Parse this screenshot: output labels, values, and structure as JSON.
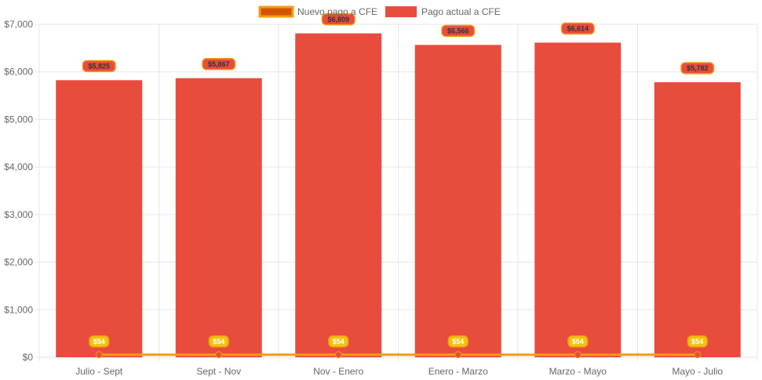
{
  "colors": {
    "bar_fill": "#e84c3d",
    "line_stroke": "#f39c12",
    "legend_line_fill": "#d35400",
    "label_line_bg": "#f1c40f",
    "label_line_border": "#f39c12",
    "label_line_text": "#ffffff",
    "label_bar_bg": "#e84c3d",
    "label_bar_border": "#f39c12",
    "label_bar_text": "#333333",
    "grid": "#e5e5e5",
    "axis_text": "#666666"
  },
  "chart_data": {
    "type": "bar",
    "categories": [
      "Julio - Sept",
      "Sept - Nov",
      "Nov - Enero",
      "Enero - Marzo",
      "Marzo - Mayo",
      "Mayo - Julio"
    ],
    "series": [
      {
        "name": "Nuevo pago a CFE",
        "type": "line",
        "values": [
          54,
          54,
          54,
          54,
          54,
          54
        ],
        "labels": [
          "$54",
          "$54",
          "$54",
          "$54",
          "$54",
          "$54"
        ]
      },
      {
        "name": "Pago actual a CFE",
        "type": "bar",
        "values": [
          5825,
          5867,
          6809,
          6566,
          6614,
          5782
        ],
        "labels": [
          "$5,825",
          "$5,867",
          "$6,809",
          "$6,566",
          "$6,614",
          "$5,782"
        ]
      }
    ],
    "ylim": [
      0,
      7000
    ],
    "yticks": [
      0,
      1000,
      2000,
      3000,
      4000,
      5000,
      6000,
      7000
    ],
    "ytick_labels": [
      "$0",
      "$1,000",
      "$2,000",
      "$3,000",
      "$4,000",
      "$5,000",
      "$6,000",
      "$7,000"
    ],
    "grid": true,
    "legend_position": "top"
  }
}
